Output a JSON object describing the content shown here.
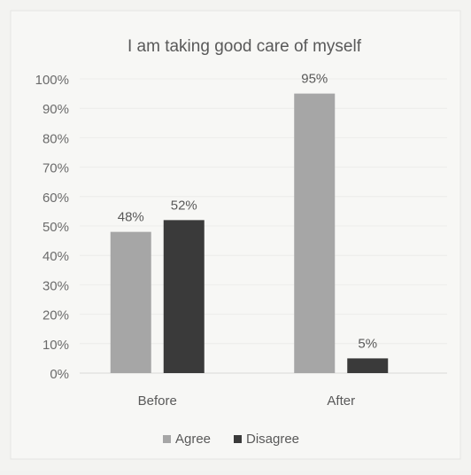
{
  "chart_data": {
    "type": "bar",
    "title": "I am taking good care of myself",
    "xlabel": "",
    "ylabel": "",
    "categories": [
      "Before",
      "After"
    ],
    "series": [
      {
        "name": "Agree",
        "values": [
          48,
          95
        ],
        "labels": [
          "48%",
          "95%"
        ],
        "color": "#a6a6a6"
      },
      {
        "name": "Disagree",
        "values": [
          52,
          5
        ],
        "labels": [
          "52%",
          "5%"
        ],
        "color": "#3a3a3a"
      }
    ],
    "ylim": [
      0,
      100
    ],
    "yticks": [
      0,
      10,
      20,
      30,
      40,
      50,
      60,
      70,
      80,
      90,
      100
    ],
    "ytick_labels": [
      "0%",
      "10%",
      "20%",
      "30%",
      "40%",
      "50%",
      "60%",
      "70%",
      "80%",
      "90%",
      "100%"
    ],
    "grid": true,
    "legend_position": "bottom"
  }
}
